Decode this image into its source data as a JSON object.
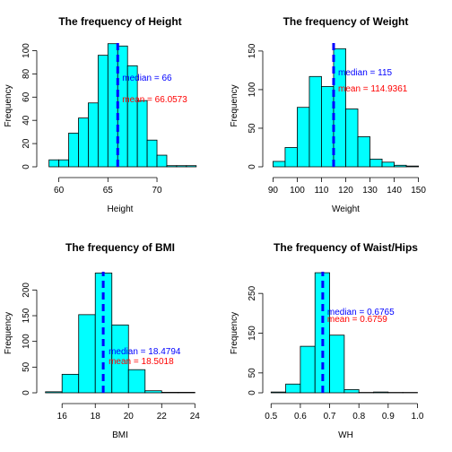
{
  "chart_data": [
    {
      "type": "bar",
      "title": "The frequency of Height",
      "xlabel": "Height",
      "ylabel": "Frequency",
      "bar_color": "#00FFFF",
      "median_line_color": "#0000FF",
      "median_text_color": "#0000FF",
      "mean_text_color": "#FF0000",
      "xlim": [
        58.3,
        74.2
      ],
      "ylim": [
        0,
        105
      ],
      "xticks": [
        60,
        65,
        70
      ],
      "yticks": [
        0,
        20,
        40,
        60,
        80,
        100
      ],
      "bin_edges": [
        59,
        60,
        61,
        62,
        63,
        64,
        65,
        66,
        67,
        68,
        69,
        70,
        71,
        72,
        73,
        74
      ],
      "values": [
        6,
        6,
        29,
        42,
        55,
        96,
        106,
        104,
        87,
        57,
        23,
        10,
        1,
        1,
        1
      ],
      "median": 66,
      "mean": 66.0573,
      "median_text": "median =  66",
      "mean_text": "mean =  66.0573"
    },
    {
      "type": "bar",
      "title": "The frequency of Weight",
      "xlabel": "Weight",
      "ylabel": "Frequency",
      "bar_color": "#00FFFF",
      "median_line_color": "#0000FF",
      "median_text_color": "#0000FF",
      "mean_text_color": "#FF0000",
      "xlim": [
        88,
        152
      ],
      "ylim": [
        0,
        158
      ],
      "xticks": [
        90,
        100,
        110,
        120,
        130,
        140,
        150
      ],
      "yticks": [
        0,
        50,
        100,
        150
      ],
      "bin_edges": [
        90,
        95,
        100,
        105,
        110,
        115,
        120,
        125,
        130,
        135,
        140,
        145,
        150
      ],
      "values": [
        7,
        25,
        77,
        117,
        104,
        153,
        75,
        39,
        10,
        6,
        2,
        1
      ],
      "median": 115,
      "mean": 114.9361,
      "median_text": "median =  115",
      "mean_text": "mean =  114.9361"
    },
    {
      "type": "bar",
      "title": "The frequency of BMI",
      "xlabel": "BMI",
      "ylabel": "Frequency",
      "bar_color": "#00FFFF",
      "median_line_color": "#0000FF",
      "median_text_color": "#0000FF",
      "mean_text_color": "#FF0000",
      "xlim": [
        14.8,
        24.2
      ],
      "ylim": [
        0,
        232
      ],
      "xticks": [
        16,
        18,
        20,
        22,
        24
      ],
      "yticks": [
        0,
        50,
        100,
        150,
        200
      ],
      "bin_edges": [
        15,
        16,
        17,
        18,
        19,
        20,
        21,
        22,
        23,
        24
      ],
      "values": [
        2,
        36,
        152,
        233,
        132,
        45,
        4,
        1,
        1
      ],
      "median": 18.4794,
      "mean": 18.5018,
      "median_text": "median =  18.4794",
      "mean_text": "mean =  18.5018"
    },
    {
      "type": "bar",
      "title": "The frequency of Waist/Hips",
      "xlabel": "WH",
      "ylabel": "Frequency",
      "bar_color": "#00FFFF",
      "median_line_color": "#0000FF",
      "median_text_color": "#0000FF",
      "mean_text_color": "#FF0000",
      "xlim": [
        0.49,
        1.02
      ],
      "ylim": [
        0,
        300
      ],
      "xticks": [
        0.5,
        0.6,
        0.7,
        0.8,
        0.9,
        1.0
      ],
      "xtick_labels": [
        "0.5",
        "0.6",
        "0.7",
        "0.8",
        "0.9",
        "1.0"
      ],
      "yticks": [
        0,
        50,
        150,
        250
      ],
      "bin_edges": [
        0.5,
        0.55,
        0.6,
        0.65,
        0.7,
        0.75,
        0.8,
        0.85,
        0.9,
        0.95,
        1.0
      ],
      "values": [
        2,
        22,
        117,
        302,
        145,
        8,
        1,
        2,
        1,
        1
      ],
      "median": 0.6765,
      "mean": 0.6759,
      "median_text": "median =  0.6765",
      "mean_text": "mean =  0.6759"
    }
  ]
}
